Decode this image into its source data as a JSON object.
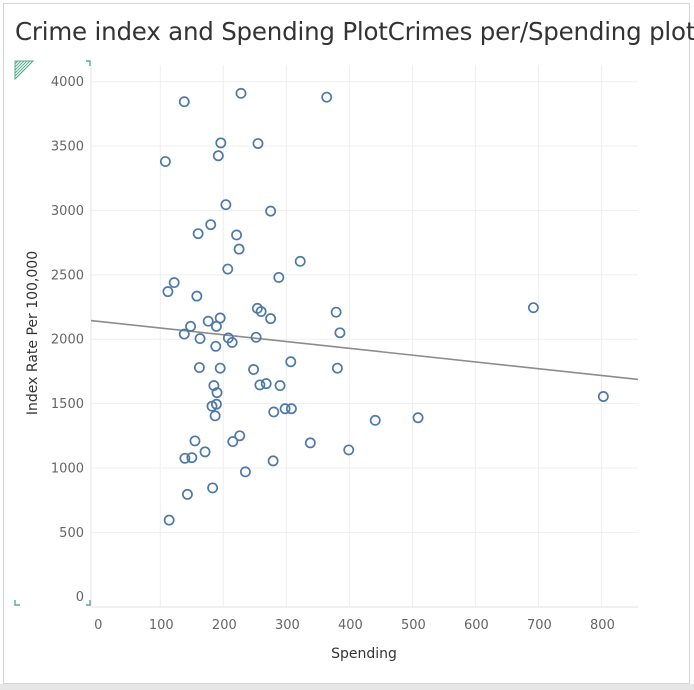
{
  "title": "Crime index and Spending PlotCrimes per/Spending plot",
  "chart_data": {
    "type": "scatter",
    "title": "Crime index and Spending PlotCrimes per/Spending plot",
    "xlabel": "Spending",
    "ylabel": "Index Rate Per 100,000",
    "xlim": [
      -10,
      858
    ],
    "ylim": [
      -80,
      4130
    ],
    "x_ticks": [
      0,
      100,
      200,
      300,
      400,
      500,
      600,
      700,
      800
    ],
    "x_tick_labels": [
      "0",
      "100",
      "200",
      "300",
      "400",
      "500",
      "600",
      "700",
      "800"
    ],
    "y_ticks": [
      0,
      500,
      1000,
      1500,
      2000,
      2500,
      3000,
      3500,
      4000
    ],
    "y_tick_labels": [
      "0",
      "500",
      "1000",
      "1500",
      "2000",
      "2500",
      "3000",
      "3500",
      "4000"
    ],
    "grid": true,
    "marker": "hollow-circle",
    "colors": {
      "points": "#4e79a7",
      "trend": "#8c8c8c",
      "grid": "#efefef",
      "tick_text": "#666666",
      "axis_title": "#333333",
      "corner_mark": "#5aab8c"
    },
    "trend_line": {
      "x": [
        -10,
        858
      ],
      "y": [
        2145,
        1688
      ]
    },
    "points": [
      [
        138,
        3845
      ],
      [
        228,
        3910
      ],
      [
        364,
        3880
      ],
      [
        196,
        3525
      ],
      [
        255,
        3520
      ],
      [
        192,
        3425
      ],
      [
        108,
        3380
      ],
      [
        204,
        3045
      ],
      [
        275,
        2995
      ],
      [
        180,
        2890
      ],
      [
        160,
        2820
      ],
      [
        221,
        2810
      ],
      [
        225,
        2700
      ],
      [
        322,
        2605
      ],
      [
        207,
        2545
      ],
      [
        288,
        2480
      ],
      [
        122,
        2440
      ],
      [
        112,
        2370
      ],
      [
        158,
        2335
      ],
      [
        254,
        2240
      ],
      [
        260,
        2215
      ],
      [
        379,
        2210
      ],
      [
        275,
        2160
      ],
      [
        195,
        2165
      ],
      [
        176,
        2140
      ],
      [
        148,
        2100
      ],
      [
        189,
        2100
      ],
      [
        138,
        2040
      ],
      [
        385,
        2050
      ],
      [
        163,
        2005
      ],
      [
        208,
        2010
      ],
      [
        214,
        1975
      ],
      [
        252,
        2015
      ],
      [
        188,
        1945
      ],
      [
        307,
        1825
      ],
      [
        162,
        1780
      ],
      [
        195,
        1775
      ],
      [
        248,
        1765
      ],
      [
        381,
        1775
      ],
      [
        258,
        1645
      ],
      [
        268,
        1655
      ],
      [
        290,
        1640
      ],
      [
        185,
        1640
      ],
      [
        190,
        1585
      ],
      [
        189,
        1495
      ],
      [
        182,
        1480
      ],
      [
        187,
        1405
      ],
      [
        280,
        1435
      ],
      [
        298,
        1460
      ],
      [
        308,
        1460
      ],
      [
        441,
        1370
      ],
      [
        509,
        1390
      ],
      [
        803,
        1555
      ],
      [
        692,
        2245
      ],
      [
        226,
        1250
      ],
      [
        215,
        1205
      ],
      [
        155,
        1210
      ],
      [
        338,
        1195
      ],
      [
        171,
        1125
      ],
      [
        399,
        1140
      ],
      [
        139,
        1075
      ],
      [
        150,
        1080
      ],
      [
        279,
        1055
      ],
      [
        235,
        970
      ],
      [
        183,
        845
      ],
      [
        143,
        795
      ],
      [
        114,
        595
      ]
    ]
  }
}
